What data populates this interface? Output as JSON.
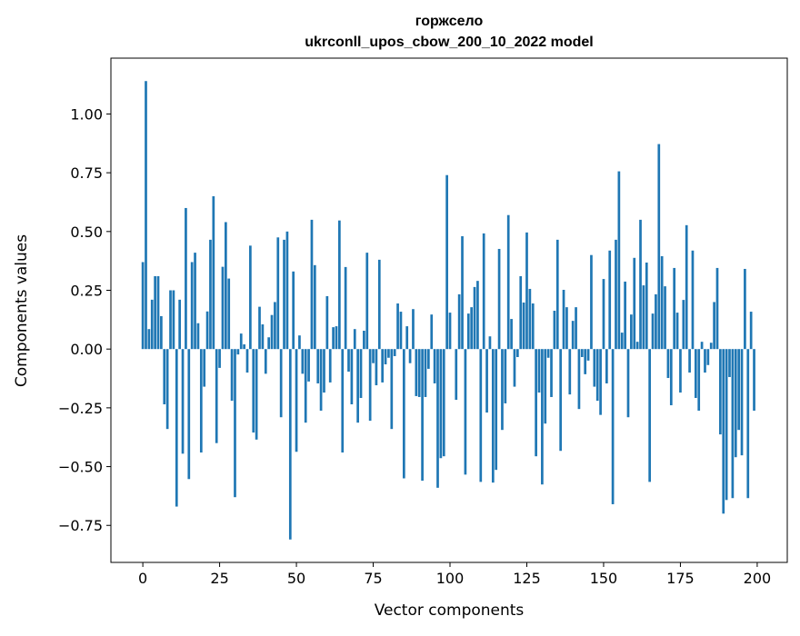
{
  "chart_data": {
    "type": "bar",
    "title_line1": "горжсело",
    "title_line2": "ukrconll_upos_cbow_200_10_2022 model",
    "xlabel": "Vector components",
    "ylabel": "Components values",
    "xlim": [
      -10.39,
      209.79
    ],
    "ylim": [
      -0.9075,
      1.2375
    ],
    "xticks": [
      0,
      25,
      50,
      75,
      100,
      125,
      150,
      175,
      200
    ],
    "xtick_labels": [
      "0",
      "25",
      "50",
      "75",
      "100",
      "125",
      "150",
      "175",
      "200"
    ],
    "yticks": [
      -0.75,
      -0.5,
      -0.25,
      0,
      0.25,
      0.5,
      0.75,
      1.0
    ],
    "ytick_labels": [
      "−0.75",
      "−0.50",
      "−0.25",
      "0.00",
      "0.25",
      "0.50",
      "0.75",
      "1.00"
    ],
    "grid": false,
    "bar_color": "#1f77b4",
    "values": [
      0.37,
      1.14,
      0.085,
      0.21,
      0.31,
      0.31,
      0.14,
      -0.235,
      -0.34,
      0.25,
      0.25,
      -0.67,
      0.21,
      -0.445,
      0.6,
      -0.553,
      0.37,
      0.41,
      0.11,
      -0.44,
      -0.16,
      0.16,
      0.465,
      0.65,
      -0.4,
      -0.08,
      0.35,
      0.54,
      0.3,
      -0.22,
      -0.63,
      -0.023,
      0.066,
      0.02,
      -0.1,
      0.44,
      -0.355,
      -0.385,
      0.18,
      0.105,
      -0.105,
      0.05,
      0.145,
      0.2,
      0.475,
      -0.29,
      0.465,
      0.5,
      -0.81,
      0.33,
      -0.437,
      0.058,
      -0.105,
      -0.313,
      -0.138,
      0.55,
      0.357,
      -0.146,
      -0.262,
      -0.185,
      0.225,
      -0.142,
      0.093,
      0.097,
      0.547,
      -0.44,
      0.349,
      -0.096,
      -0.235,
      0.085,
      -0.313,
      -0.208,
      0.078,
      0.41,
      -0.305,
      -0.06,
      -0.154,
      0.38,
      -0.142,
      -0.065,
      -0.037,
      -0.34,
      -0.03,
      0.194,
      0.159,
      -0.55,
      0.097,
      -0.06,
      0.17,
      -0.2,
      -0.204,
      -0.56,
      -0.204,
      -0.084,
      0.147,
      -0.146,
      -0.59,
      -0.464,
      -0.456,
      0.74,
      0.155,
      0.0,
      -0.216,
      0.233,
      0.48,
      -0.534,
      0.151,
      0.178,
      0.264,
      0.29,
      -0.565,
      0.492,
      -0.27,
      0.054,
      -0.568,
      -0.514,
      0.426,
      -0.344,
      -0.231,
      0.57,
      0.128,
      -0.16,
      -0.034,
      0.31,
      0.198,
      0.496,
      0.256,
      0.194,
      -0.456,
      -0.185,
      -0.576,
      -0.317,
      -0.037,
      -0.204,
      0.163,
      0.465,
      -0.433,
      0.252,
      0.178,
      -0.193,
      0.12,
      0.178,
      -0.255,
      -0.034,
      -0.107,
      -0.049,
      0.4,
      -0.16,
      -0.22,
      -0.28,
      0.298,
      -0.146,
      0.419,
      -0.66,
      0.465,
      0.756,
      0.07,
      0.287,
      -0.29,
      0.147,
      0.388,
      0.031,
      0.55,
      0.271,
      0.368,
      -0.565,
      0.151,
      0.233,
      0.872,
      0.395,
      0.267,
      -0.123,
      -0.239,
      0.345,
      0.155,
      -0.185,
      0.209,
      0.527,
      -0.1,
      0.419,
      -0.208,
      -0.262,
      0.031,
      -0.1,
      -0.068,
      0.027,
      0.2,
      0.345,
      -0.363,
      -0.7,
      -0.642,
      -0.119,
      -0.634,
      -0.46,
      -0.344,
      -0.452,
      0.341,
      -0.634,
      0.159,
      -0.262
    ]
  }
}
